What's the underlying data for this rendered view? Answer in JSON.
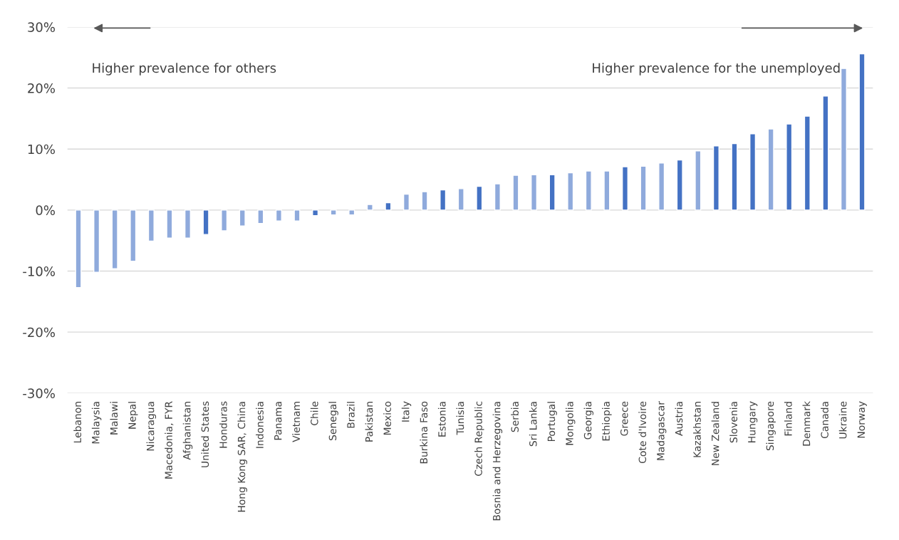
{
  "chart_data": {
    "type": "bar",
    "categories": [
      "Lebanon",
      "Malaysia",
      "Malawi",
      "Nepal",
      "Nicaragua",
      "Macedonia, FYR",
      "Afghanistan",
      "United States",
      "Honduras",
      "Hong Kong SAR, China",
      "Indonesia",
      "Panama",
      "Vietnam",
      "Chile",
      "Senegal",
      "Brazil",
      "Pakistan",
      "Mexico",
      "Italy",
      "Burkina Faso",
      "Estonia",
      "Tunisia",
      "Czech Republic",
      "Bosnia and Herzegovina",
      "Serbia",
      "Sri Lanka",
      "Portugal",
      "Mongolia",
      "Georgia",
      "Ethiopia",
      "Greece",
      "Cote d'Ivoire",
      "Madagascar",
      "Austria",
      "Kazakhstan",
      "New Zealand",
      "Slovenia",
      "Hungary",
      "Singapore",
      "Finland",
      "Denmark",
      "Canada",
      "Ukraine",
      "Norway"
    ],
    "values": [
      -12.7,
      -10.2,
      -9.6,
      -8.4,
      -5.1,
      -4.6,
      -4.6,
      -4.0,
      -3.4,
      -2.6,
      -2.2,
      -1.8,
      -1.8,
      -0.9,
      -0.8,
      -0.8,
      0.9,
      1.2,
      2.6,
      3.0,
      3.3,
      3.5,
      3.9,
      4.3,
      5.7,
      5.8,
      5.8,
      6.1,
      6.4,
      6.4,
      7.1,
      7.2,
      7.7,
      8.2,
      9.7,
      10.5,
      10.9,
      12.5,
      13.3,
      14.1,
      15.4,
      18.7,
      23.2,
      25.6
    ],
    "colors": [
      "#8faadc",
      "#8faadc",
      "#8faadc",
      "#8faadc",
      "#8faadc",
      "#8faadc",
      "#8faadc",
      "#4472c4",
      "#8faadc",
      "#8faadc",
      "#8faadc",
      "#8faadc",
      "#8faadc",
      "#4472c4",
      "#8faadc",
      "#8faadc",
      "#8faadc",
      "#4472c4",
      "#8faadc",
      "#8faadc",
      "#4472c4",
      "#8faadc",
      "#4472c4",
      "#8faadc",
      "#8faadc",
      "#8faadc",
      "#4472c4",
      "#8faadc",
      "#8faadc",
      "#8faadc",
      "#4472c4",
      "#8faadc",
      "#8faadc",
      "#4472c4",
      "#8faadc",
      "#4472c4",
      "#4472c4",
      "#4472c4",
      "#8faadc",
      "#4472c4",
      "#4472c4",
      "#4472c4",
      "#8faadc",
      "#4472c4"
    ],
    "ylim": [
      -30,
      30
    ],
    "yticks": [
      {
        "value": -30,
        "label": "-30%"
      },
      {
        "value": -20,
        "label": "-20%"
      },
      {
        "value": -10,
        "label": "-10%"
      },
      {
        "value": 0,
        "label": "0%"
      },
      {
        "value": 10,
        "label": "10%"
      },
      {
        "value": 20,
        "label": "20%"
      },
      {
        "value": 30,
        "label": "30%"
      }
    ],
    "grid": "y",
    "annotations": [
      "Higher prevalence for others",
      "Higher prevalence for the unemployed"
    ]
  }
}
